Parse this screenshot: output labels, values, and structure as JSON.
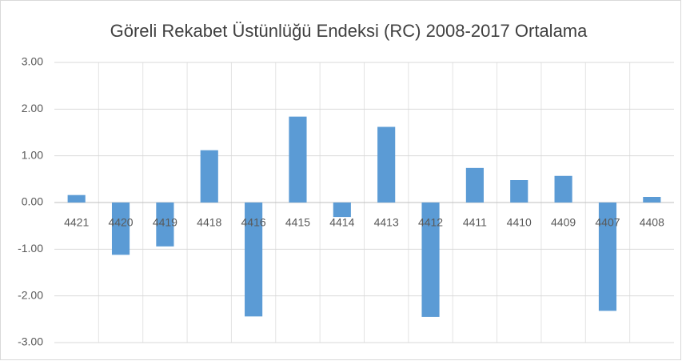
{
  "chart_data": {
    "type": "bar",
    "title": "Göreli Rekabet Üstünlüğü Endeksi (RC) 2008-2017 Ortalama",
    "categories": [
      "4421",
      "4420",
      "4419",
      "4418",
      "4416",
      "4415",
      "4414",
      "4413",
      "4412",
      "4411",
      "4410",
      "4409",
      "4407",
      "4408"
    ],
    "values": [
      0.16,
      -1.12,
      -0.94,
      1.12,
      -2.44,
      1.84,
      -0.31,
      1.62,
      -2.45,
      0.74,
      0.48,
      0.57,
      -2.32,
      0.12
    ],
    "color": "#5b9bd5",
    "ylim": [
      -3,
      3
    ],
    "yticks": [
      {
        "value": -3,
        "label": "-3.00"
      },
      {
        "value": -2,
        "label": "-2.00"
      },
      {
        "value": -1,
        "label": "-1.00"
      },
      {
        "value": 0,
        "label": "0.00"
      },
      {
        "value": 1,
        "label": "1.00"
      },
      {
        "value": 2,
        "label": "2.00"
      },
      {
        "value": 3,
        "label": "3.00"
      }
    ],
    "grid": true
  }
}
